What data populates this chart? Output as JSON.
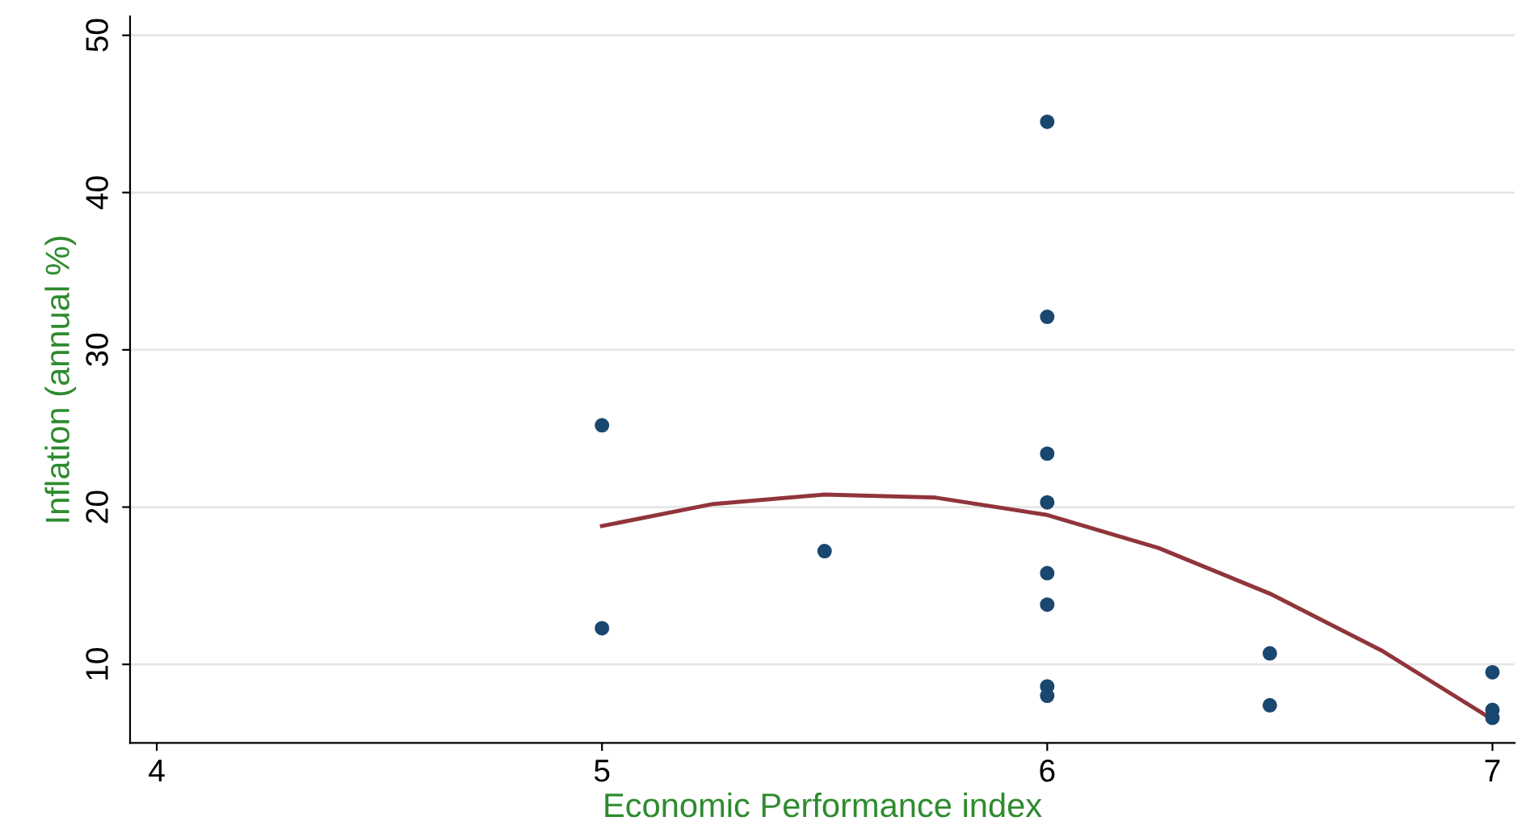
{
  "chart_data": {
    "type": "scatter",
    "xlabel": "Economic Performance index",
    "ylabel": "Inflation (annual %)",
    "xlim": [
      3.94,
      7.05
    ],
    "ylim": [
      5,
      51.2
    ],
    "xticks": [
      4,
      5,
      6,
      7
    ],
    "yticks": [
      10,
      20,
      30,
      40,
      50
    ],
    "grid": "y",
    "series": [
      {
        "marker": "circle",
        "color": "#1a476f",
        "x": [
          5,
          5,
          5.5,
          6,
          6,
          6,
          6,
          6,
          6,
          6,
          6,
          6.5,
          6.5,
          7,
          7,
          7
        ],
        "values": [
          25.2,
          12.3,
          17.2,
          44.5,
          32.1,
          23.4,
          20.3,
          15.8,
          13.8,
          8.6,
          8.0,
          10.7,
          7.4,
          9.5,
          7.1,
          6.6
        ]
      },
      {
        "type": "line",
        "color": "#90353b",
        "x": [
          5,
          5.25,
          5.5,
          5.75,
          6,
          6.25,
          6.5,
          6.75,
          7
        ],
        "values": [
          18.8,
          20.2,
          20.8,
          20.6,
          19.5,
          17.4,
          14.5,
          10.9,
          6.5
        ]
      }
    ]
  }
}
